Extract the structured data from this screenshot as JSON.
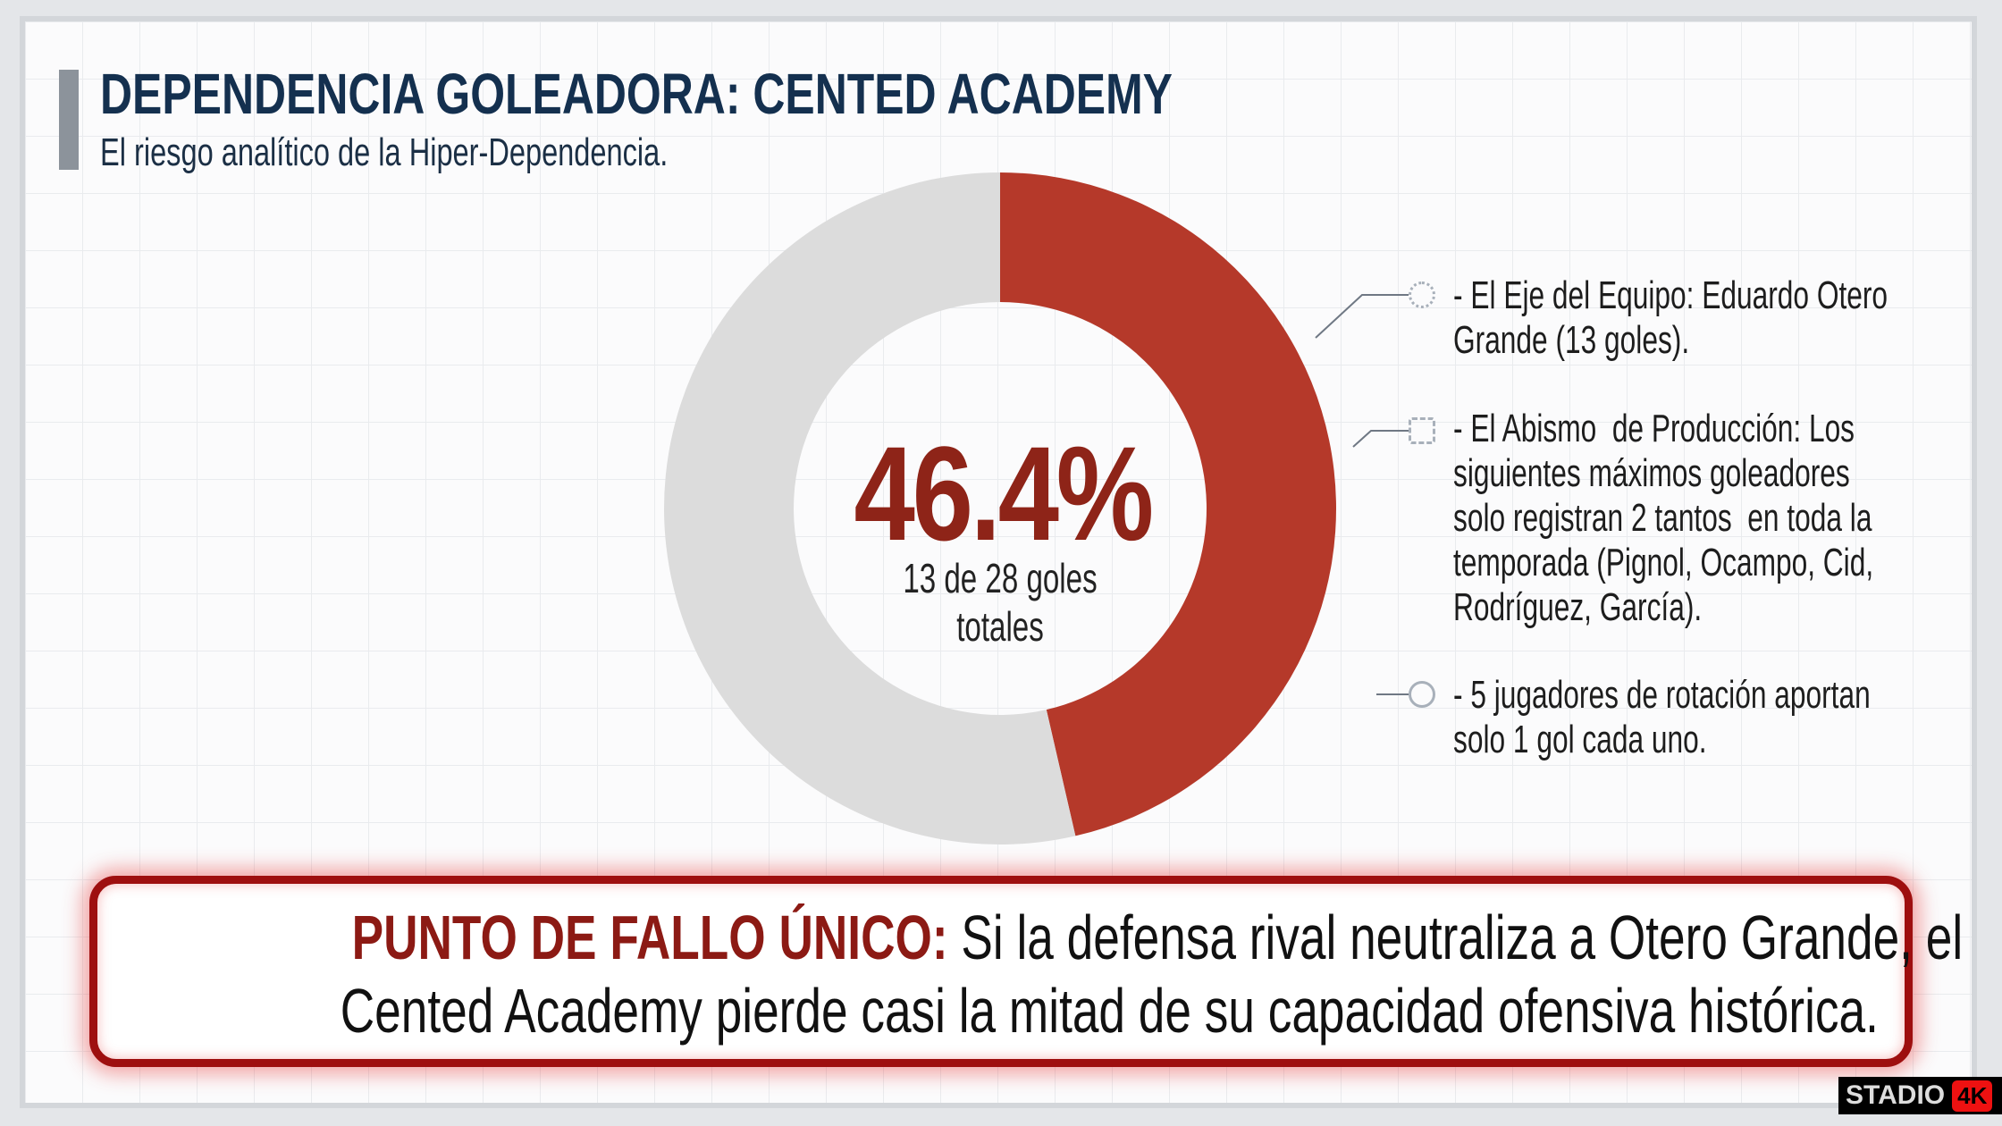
{
  "header": {
    "title": "DEPENDENCIA GOLEADORA: CENTED ACADEMY",
    "subtitle": "El riesgo analítico de la Hiper-Dependencia."
  },
  "chart_data": {
    "type": "pie",
    "variant": "donut",
    "values": [
      46.4,
      53.6
    ],
    "colors": [
      "#b5392a",
      "#dcdcdc"
    ],
    "center_label": "46.4%",
    "center_sublabel": "13 de 28 goles totales"
  },
  "bullets": [
    {
      "icon": "gear-icon",
      "lines": [
        "- El Eje del Equipo: Eduardo Otero",
        "Grande (13 goles)."
      ]
    },
    {
      "icon": "chart-icon",
      "lines": [
        "- El Abismo  de Producción: Los",
        "siguientes máximos goleadores",
        "solo registran 2 tantos  en toda la",
        "temporada (Pignol, Ocampo, Cid,",
        "Rodríguez, García)."
      ]
    },
    {
      "icon": "rotation-icon",
      "lines": [
        "- 5 jugadores de rotación aportan",
        "solo 1 gol cada uno."
      ]
    }
  ],
  "alert": {
    "heading": "PUNTO DE FALLO ÚNICO:",
    "line1_rest": " Si la defensa rival neutraliza a Otero Grande, el",
    "line2": "Cented Academy pierde casi la mitad de su capacidad ofensiva histórica.",
    "border_color": "#9e0f0f"
  },
  "logo": {
    "word": "STADIO",
    "badge": "4K"
  }
}
